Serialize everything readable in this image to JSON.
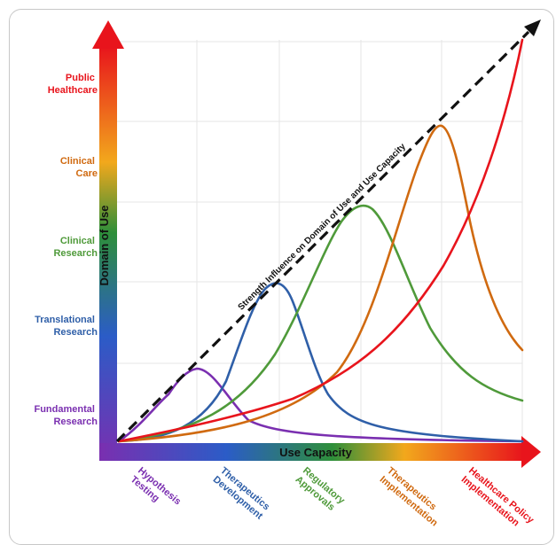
{
  "y_axis": {
    "title": "Domain of Use",
    "levels": [
      {
        "line1": "Fundamental",
        "line2": "Research",
        "color": "#7a2fb0"
      },
      {
        "line1": "Translational",
        "line2": "Research",
        "color": "#2f5fa8"
      },
      {
        "line1": "Clinical",
        "line2": "Research",
        "color": "#4f9a3a"
      },
      {
        "line1": "Clinical",
        "line2": "Care",
        "color": "#d06a10"
      },
      {
        "line1": "Public",
        "line2": "Healthcare",
        "color": "#e8141c"
      }
    ]
  },
  "x_axis": {
    "title": "Use Capacity",
    "stages": [
      {
        "line1": "Hypothesis",
        "line2": "Testing",
        "color": "#7a2fb0"
      },
      {
        "line1": "Therapeutics",
        "line2": "Development",
        "color": "#2f5fa8"
      },
      {
        "line1": "Regulatory",
        "line2": "Approvals",
        "color": "#4f9a3a"
      },
      {
        "line1": "Therapeutics",
        "line2": "Implementation",
        "color": "#d06a10"
      },
      {
        "line1": "Healthcare Policy",
        "line2": "Implementation",
        "color": "#e8141c"
      }
    ]
  },
  "diagonal_label": "Strength Influence on Domain of Use and Use Capacity",
  "colors": {
    "purple": "#7a2fb0",
    "blue": "#2f5fa8",
    "green": "#4f9a3a",
    "orange": "#d06a10",
    "red": "#e8141c"
  }
}
